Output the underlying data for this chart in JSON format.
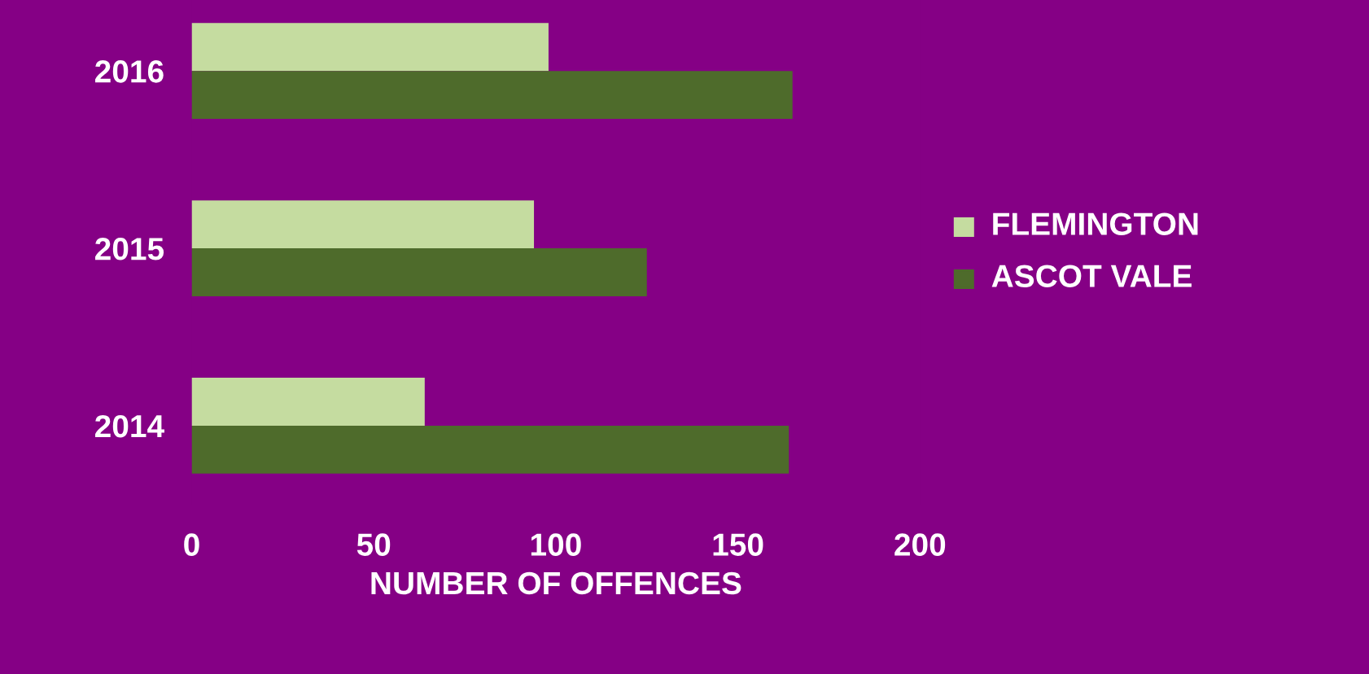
{
  "chart_data": {
    "type": "bar",
    "orientation": "horizontal",
    "categories": [
      "2016",
      "2015",
      "2014"
    ],
    "xlabel": "NUMBER OF OFFENCES",
    "xlim": [
      0,
      200
    ],
    "xticks": [
      0,
      50,
      100,
      150,
      200
    ],
    "legend": "right",
    "series": [
      {
        "name": "FLEMINGTON",
        "color": "#c5dca0",
        "values": [
          98,
          94,
          64
        ]
      },
      {
        "name": "ASCOT VALE",
        "color": "#4e6b2b",
        "values": [
          165,
          125,
          164
        ]
      }
    ]
  }
}
